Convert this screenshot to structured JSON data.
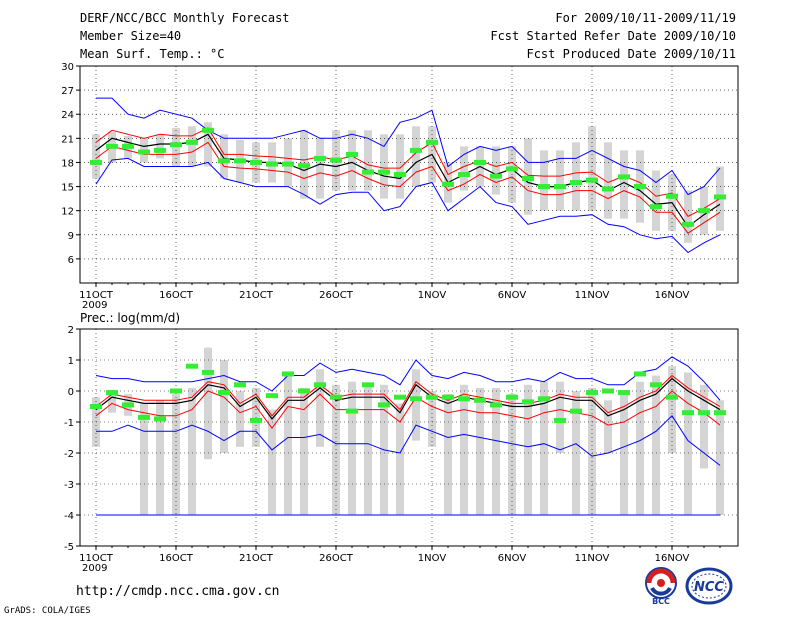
{
  "header": {
    "title": "DERF/NCC/BCC Monthly Forecast",
    "member_size": "Member Size=40",
    "variable1": "Mean Surf. Temp.: °C",
    "period": "For 2009/10/11-2009/11/19",
    "started": "Fcst Started Refer Date 2009/10/10",
    "produced": "Fcst Produced Date 2009/10/11"
  },
  "variable2": "Prec.: log(mm/d)",
  "year_label": "2009",
  "footer": {
    "url": "http://cmdp.ncc.cma.gov.cn",
    "grads": "GrADS: COLA/IGES"
  },
  "logos": {
    "bcc": "BCC",
    "ncc": "NCC"
  },
  "colors": {
    "max_min": "#0000ff",
    "p_band": "#ff0000",
    "mean": "#000000",
    "obs": "#33ee33",
    "box": "#d4d4d4"
  },
  "chart_data": [
    {
      "type": "box_line",
      "name": "temperature",
      "ylabel": "Mean Surf. Temp.: °C",
      "ylim": [
        3,
        30
      ],
      "yticks": [
        6,
        9,
        12,
        15,
        18,
        21,
        24,
        27,
        30
      ],
      "xticks": [
        "11OCT",
        "16OCT",
        "21OCT",
        "26OCT",
        "1NOV",
        "6NOV",
        "11NOV",
        "16NOV"
      ],
      "tick_days": [
        0,
        5,
        10,
        15,
        21,
        26,
        31,
        36
      ],
      "days": 40,
      "mean": [
        19.5,
        21.0,
        20.5,
        20.0,
        20.3,
        20.3,
        20.5,
        21.5,
        18.5,
        18.3,
        18.0,
        18.0,
        17.8,
        17.0,
        17.8,
        17.5,
        18.0,
        17.0,
        16.3,
        16.0,
        18.0,
        19.0,
        15.5,
        16.5,
        17.5,
        16.5,
        17.2,
        15.5,
        15.0,
        15.0,
        15.5,
        15.8,
        14.5,
        15.5,
        14.5,
        12.8,
        13.0,
        10.0,
        11.5,
        12.8
      ],
      "upper": [
        20.5,
        22.0,
        21.5,
        21.0,
        21.5,
        21.3,
        21.3,
        22.3,
        19.0,
        19.0,
        18.8,
        18.7,
        18.5,
        18.3,
        18.7,
        18.3,
        18.8,
        17.7,
        17.3,
        17.3,
        19.2,
        20.5,
        16.5,
        17.5,
        18.2,
        17.5,
        18.0,
        16.4,
        16.3,
        16.3,
        16.7,
        16.8,
        15.5,
        16.3,
        15.5,
        13.8,
        14.2,
        11.3,
        12.3,
        13.5
      ],
      "lower": [
        18.5,
        20.0,
        19.5,
        19.0,
        19.0,
        19.0,
        19.3,
        20.5,
        17.5,
        17.3,
        17.2,
        17.0,
        16.8,
        16.0,
        16.7,
        16.3,
        17.0,
        16.0,
        15.2,
        15.0,
        16.8,
        17.5,
        14.5,
        15.3,
        16.5,
        15.5,
        16.2,
        14.5,
        14.0,
        14.0,
        14.5,
        14.5,
        13.5,
        14.5,
        13.7,
        11.8,
        11.8,
        9.2,
        10.5,
        11.8
      ],
      "max": [
        26.0,
        26.0,
        24.0,
        23.5,
        24.5,
        24.0,
        23.5,
        22.0,
        21.0,
        21.0,
        21.0,
        21.0,
        21.5,
        22.0,
        21.0,
        21.0,
        21.5,
        21.0,
        20.0,
        23.0,
        23.5,
        24.5,
        17.5,
        19.0,
        20.0,
        19.5,
        20.0,
        18.0,
        18.0,
        18.5,
        18.5,
        19.5,
        18.5,
        17.5,
        17.0,
        15.5,
        17.0,
        14.0,
        15.0,
        17.3
      ],
      "min": [
        15.3,
        18.3,
        18.5,
        17.5,
        17.5,
        17.5,
        17.5,
        18.0,
        16.0,
        15.5,
        15.0,
        15.0,
        15.0,
        14.0,
        12.8,
        14.0,
        14.3,
        14.3,
        12.0,
        12.5,
        15.0,
        15.5,
        12.0,
        13.5,
        15.0,
        13.0,
        12.5,
        10.3,
        10.8,
        11.3,
        11.3,
        11.5,
        10.3,
        10.0,
        9.0,
        8.5,
        8.8,
        6.8,
        8.0,
        9.0
      ],
      "box_top": [
        21.5,
        21.8,
        21.3,
        21.0,
        21.5,
        22.3,
        22.5,
        23.0,
        21.5,
        20.8,
        20.5,
        20.5,
        21.0,
        22.0,
        21.0,
        22.0,
        22.0,
        22.0,
        21.5,
        21.5,
        22.5,
        22.5,
        18.0,
        20.0,
        20.0,
        20.0,
        20.0,
        21.0,
        19.5,
        19.5,
        20.5,
        22.5,
        20.5,
        19.5,
        19.5,
        17.0,
        16.5,
        14.5,
        15.0,
        17.5
      ],
      "box_bot": [
        16.0,
        18.0,
        18.5,
        18.0,
        18.5,
        17.5,
        17.5,
        17.5,
        16.0,
        15.5,
        15.5,
        15.5,
        15.0,
        13.5,
        13.5,
        14.5,
        14.5,
        14.5,
        13.5,
        13.5,
        15.0,
        15.5,
        13.0,
        14.5,
        15.0,
        14.0,
        13.0,
        11.5,
        12.0,
        12.0,
        12.0,
        12.0,
        11.0,
        11.0,
        10.5,
        9.5,
        9.5,
        8.0,
        9.0,
        9.5
      ],
      "obs": [
        18.0,
        20.0,
        20.0,
        19.3,
        19.5,
        20.2,
        20.5,
        22.0,
        18.2,
        18.2,
        18.0,
        17.8,
        17.8,
        17.6,
        18.5,
        18.3,
        19.0,
        16.8,
        16.8,
        16.5,
        19.5,
        20.5,
        15.3,
        16.5,
        18.0,
        16.3,
        17.2,
        16.0,
        15.0,
        15.0,
        15.5,
        15.8,
        14.7,
        16.2,
        15.0,
        12.5,
        13.8,
        10.3,
        12.0,
        13.7
      ]
    },
    {
      "type": "box_line",
      "name": "precipitation",
      "ylabel": "Prec.: log(mm/d)",
      "ylim": [
        -5,
        2
      ],
      "yticks": [
        -5,
        -4,
        -3,
        -2,
        -1,
        0,
        1,
        2
      ],
      "xticks": [
        "11OCT",
        "16OCT",
        "21OCT",
        "26OCT",
        "1NOV",
        "6NOV",
        "11NOV",
        "16NOV"
      ],
      "tick_days": [
        0,
        5,
        10,
        15,
        21,
        26,
        31,
        36
      ],
      "days": 40,
      "mean": [
        -0.6,
        -0.2,
        -0.3,
        -0.4,
        -0.4,
        -0.4,
        -0.3,
        0.2,
        0.1,
        -0.5,
        -0.2,
        -0.9,
        -0.3,
        -0.3,
        0.1,
        -0.3,
        -0.2,
        -0.2,
        -0.2,
        -0.7,
        0.2,
        -0.2,
        -0.4,
        -0.2,
        -0.3,
        -0.4,
        -0.5,
        -0.5,
        -0.4,
        -0.2,
        -0.3,
        -0.3,
        -0.8,
        -0.6,
        -0.3,
        -0.1,
        0.4,
        0.0,
        -0.3,
        -0.6
      ],
      "upper": [
        -0.5,
        -0.1,
        -0.2,
        -0.3,
        -0.3,
        -0.3,
        -0.2,
        0.3,
        0.2,
        -0.4,
        -0.1,
        -0.8,
        -0.2,
        -0.2,
        0.2,
        -0.2,
        -0.1,
        -0.1,
        -0.1,
        -0.6,
        0.3,
        -0.1,
        -0.3,
        -0.1,
        -0.2,
        -0.3,
        -0.4,
        -0.4,
        -0.3,
        -0.1,
        -0.2,
        -0.2,
        -0.7,
        -0.5,
        -0.2,
        0.0,
        0.5,
        0.1,
        -0.2,
        -0.5
      ],
      "lower": [
        -0.8,
        -0.4,
        -0.6,
        -0.7,
        -0.8,
        -0.8,
        -0.6,
        0.0,
        -0.2,
        -0.7,
        -0.5,
        -1.2,
        -0.5,
        -0.6,
        -0.1,
        -0.6,
        -0.6,
        -0.6,
        -0.6,
        -1.0,
        -0.2,
        -0.5,
        -0.7,
        -0.6,
        -0.7,
        -0.7,
        -0.8,
        -0.9,
        -0.7,
        -0.6,
        -0.7,
        -0.8,
        -1.1,
        -1.0,
        -0.7,
        -0.5,
        0.0,
        -0.4,
        -0.7,
        -1.1
      ],
      "max": [
        0.5,
        0.4,
        0.4,
        0.3,
        0.3,
        0.3,
        0.3,
        0.4,
        0.5,
        0.3,
        0.3,
        0.0,
        0.5,
        0.5,
        0.9,
        0.6,
        0.7,
        0.6,
        0.5,
        0.2,
        1.0,
        0.5,
        0.4,
        0.6,
        0.5,
        0.3,
        0.3,
        0.4,
        0.3,
        0.6,
        0.4,
        0.4,
        0.2,
        0.2,
        0.6,
        0.7,
        1.1,
        0.8,
        0.3,
        -0.3
      ],
      "min": [
        -1.3,
        -1.3,
        -1.1,
        -1.3,
        -1.3,
        -1.3,
        -1.1,
        -1.3,
        -1.6,
        -1.3,
        -1.3,
        -1.9,
        -1.5,
        -1.5,
        -1.4,
        -1.7,
        -1.7,
        -1.7,
        -1.9,
        -2.0,
        -1.1,
        -1.3,
        -1.5,
        -1.4,
        -1.5,
        -1.6,
        -1.7,
        -1.8,
        -1.7,
        -1.9,
        -1.7,
        -2.1,
        -2.0,
        -1.8,
        -1.6,
        -1.3,
        -0.8,
        -1.6,
        -2.0,
        -2.4
      ],
      "box_top": [
        -0.2,
        0.0,
        -0.1,
        -0.4,
        -0.3,
        -0.1,
        0.1,
        1.4,
        1.0,
        0.0,
        0.1,
        -0.6,
        0.5,
        0.1,
        0.7,
        0.2,
        0.3,
        0.2,
        0.2,
        -0.4,
        0.7,
        0.0,
        -0.1,
        0.2,
        0.1,
        0.1,
        -0.1,
        0.2,
        0.3,
        0.3,
        0.0,
        0.1,
        -0.3,
        0.0,
        0.3,
        0.5,
        0.8,
        0.6,
        0.2,
        -0.3
      ],
      "box_bot": [
        -1.8,
        -0.7,
        -0.8,
        -4.0,
        -4.0,
        -4.0,
        -4.0,
        -2.2,
        -2.0,
        -1.8,
        -1.8,
        -4.0,
        -4.0,
        -4.0,
        -1.8,
        -4.0,
        -4.0,
        -4.0,
        -4.0,
        -4.0,
        -1.6,
        -1.8,
        -4.0,
        -4.0,
        -4.0,
        -4.0,
        -4.0,
        -4.0,
        -4.0,
        -2.0,
        -4.0,
        -4.0,
        -2.0,
        -4.0,
        -4.0,
        -4.0,
        -2.0,
        -4.0,
        -2.5,
        -4.0
      ],
      "obs": [
        -0.5,
        -0.05,
        -0.45,
        -0.85,
        -0.9,
        0.0,
        0.8,
        0.6,
        -0.05,
        0.2,
        -0.95,
        -0.15,
        0.55,
        0.0,
        0.2,
        -0.2,
        -0.65,
        0.2,
        -0.45,
        -0.2,
        -0.25,
        -0.2,
        -0.2,
        -0.25,
        -0.3,
        -0.45,
        -0.2,
        -0.35,
        -0.25,
        -0.95,
        -0.65,
        -0.05,
        0.0,
        -0.05,
        0.55,
        0.2,
        -0.2,
        -0.7,
        -0.7,
        -0.7
      ]
    }
  ]
}
